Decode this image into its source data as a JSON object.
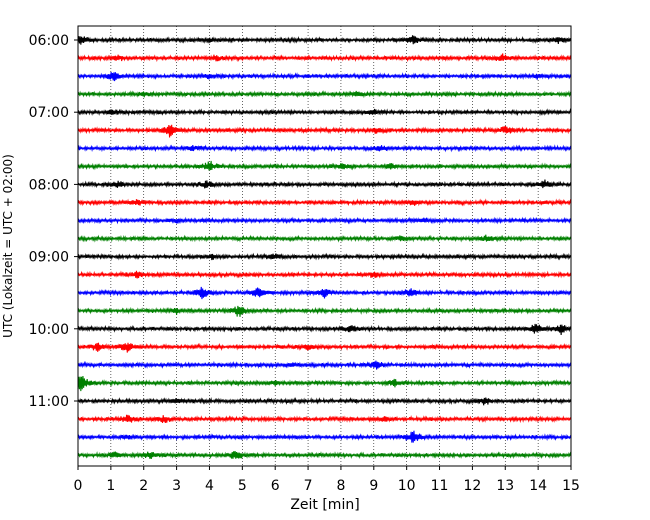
{
  "chart_data": {
    "type": "line",
    "title": "",
    "xlabel": "Zeit  [min]",
    "ylabel": "UTC (Lokalzeit = UTC + 02:00)",
    "xlim": [
      0,
      15
    ],
    "x_ticks": [
      "0",
      "1",
      "2",
      "3",
      "4",
      "5",
      "6",
      "7",
      "8",
      "9",
      "10",
      "11",
      "12",
      "13",
      "14",
      "15"
    ],
    "y_ticks": [
      "06:00",
      "07:00",
      "08:00",
      "09:00",
      "10:00",
      "11:00"
    ],
    "grid": "vertical dotted",
    "trace_interval_min": 15,
    "color_cycle": [
      "#000000",
      "#ff0000",
      "#0000ff",
      "#008000"
    ],
    "traces": [
      {
        "start": "06:00",
        "color": "#000000",
        "bursts": [
          [
            0.1,
            0.35
          ],
          [
            10.2,
            0.4
          ],
          [
            14.6,
            0.3
          ],
          [
            4.0,
            0.2
          ]
        ]
      },
      {
        "start": "06:15",
        "color": "#ff0000",
        "bursts": [
          [
            1.2,
            0.25
          ],
          [
            12.9,
            0.3
          ],
          [
            4.2,
            0.2
          ]
        ]
      },
      {
        "start": "06:30",
        "color": "#0000ff",
        "bursts": [
          [
            1.1,
            0.4
          ],
          [
            4.0,
            0.25
          ],
          [
            14.0,
            0.2
          ]
        ]
      },
      {
        "start": "06:45",
        "color": "#008000",
        "bursts": [
          [
            2.0,
            0.2
          ],
          [
            8.5,
            0.2
          ]
        ]
      },
      {
        "start": "07:00",
        "color": "#000000",
        "bursts": [
          [
            1.0,
            0.2
          ],
          [
            9.0,
            0.2
          ]
        ]
      },
      {
        "start": "07:15",
        "color": "#ff0000",
        "bursts": [
          [
            2.8,
            0.6
          ],
          [
            9.1,
            0.25
          ],
          [
            13.0,
            0.3
          ]
        ]
      },
      {
        "start": "07:30",
        "color": "#0000ff",
        "bursts": [
          [
            3.5,
            0.2
          ],
          [
            9.2,
            0.2
          ]
        ]
      },
      {
        "start": "07:45",
        "color": "#008000",
        "bursts": [
          [
            4.0,
            0.5
          ],
          [
            8.1,
            0.25
          ],
          [
            9.5,
            0.2
          ]
        ]
      },
      {
        "start": "08:00",
        "color": "#000000",
        "bursts": [
          [
            1.2,
            0.3
          ],
          [
            3.9,
            0.3
          ],
          [
            14.2,
            0.3
          ]
        ]
      },
      {
        "start": "08:15",
        "color": "#ff0000",
        "bursts": [
          [
            1.8,
            0.25
          ],
          [
            10.2,
            0.2
          ]
        ]
      },
      {
        "start": "08:30",
        "color": "#0000ff",
        "bursts": [
          [
            3.0,
            0.2
          ],
          [
            10.5,
            0.2
          ]
        ]
      },
      {
        "start": "08:45",
        "color": "#008000",
        "bursts": [
          [
            9.8,
            0.2
          ],
          [
            12.4,
            0.25
          ]
        ]
      },
      {
        "start": "09:00",
        "color": "#000000",
        "bursts": [
          [
            5.9,
            0.3
          ],
          [
            4.1,
            0.2
          ]
        ]
      },
      {
        "start": "09:15",
        "color": "#ff0000",
        "bursts": [
          [
            1.8,
            0.25
          ],
          [
            9.0,
            0.2
          ]
        ]
      },
      {
        "start": "09:30",
        "color": "#0000ff",
        "bursts": [
          [
            3.8,
            0.55
          ],
          [
            5.5,
            0.45
          ],
          [
            7.5,
            0.4
          ],
          [
            10.1,
            0.4
          ]
        ]
      },
      {
        "start": "09:45",
        "color": "#008000",
        "bursts": [
          [
            4.9,
            0.55
          ],
          [
            3.0,
            0.2
          ]
        ]
      },
      {
        "start": "10:00",
        "color": "#000000",
        "bursts": [
          [
            8.3,
            0.3
          ],
          [
            13.9,
            0.5
          ],
          [
            14.7,
            0.4
          ]
        ]
      },
      {
        "start": "10:15",
        "color": "#ff0000",
        "bursts": [
          [
            0.6,
            0.35
          ],
          [
            1.5,
            0.45
          ],
          [
            7.0,
            0.2
          ]
        ]
      },
      {
        "start": "10:30",
        "color": "#0000ff",
        "bursts": [
          [
            9.1,
            0.35
          ],
          [
            6.5,
            0.2
          ]
        ]
      },
      {
        "start": "10:45",
        "color": "#008000",
        "bursts": [
          [
            0.1,
            0.9
          ],
          [
            9.6,
            0.35
          ],
          [
            6.0,
            0.2
          ]
        ]
      },
      {
        "start": "11:00",
        "color": "#000000",
        "bursts": [
          [
            12.4,
            0.3
          ],
          [
            3.0,
            0.2
          ]
        ]
      },
      {
        "start": "11:15",
        "color": "#ff0000",
        "bursts": [
          [
            1.5,
            0.35
          ],
          [
            2.6,
            0.3
          ],
          [
            9.3,
            0.2
          ]
        ]
      },
      {
        "start": "11:30",
        "color": "#0000ff",
        "bursts": [
          [
            10.2,
            0.6
          ],
          [
            1.5,
            0.2
          ]
        ]
      },
      {
        "start": "11:45",
        "color": "#008000",
        "bursts": [
          [
            2.2,
            0.35
          ],
          [
            4.8,
            0.35
          ],
          [
            1.1,
            0.25
          ]
        ]
      }
    ]
  }
}
